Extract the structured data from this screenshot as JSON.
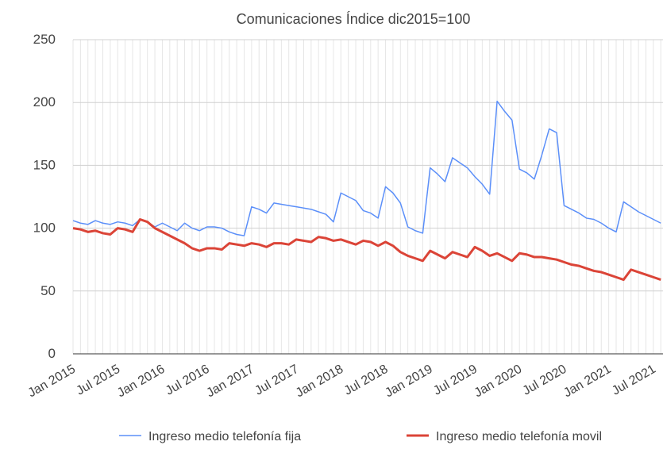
{
  "chart_data": {
    "type": "line",
    "title": "Comunicaciones Índice dic2015=100",
    "categories": [
      "Jan 2015",
      null,
      null,
      null,
      null,
      null,
      "Jul 2015",
      null,
      null,
      null,
      null,
      null,
      "Jan 2016",
      null,
      null,
      null,
      null,
      null,
      "Jul 2016",
      null,
      null,
      null,
      null,
      null,
      "Jan 2017",
      null,
      null,
      null,
      null,
      null,
      "Jul 2017",
      null,
      null,
      null,
      null,
      null,
      "Jan 2018",
      null,
      null,
      null,
      null,
      null,
      "Jul 2018",
      null,
      null,
      null,
      null,
      null,
      "Jan 2019",
      null,
      null,
      null,
      null,
      null,
      "Jul 2019",
      null,
      null,
      null,
      null,
      null,
      "Jan 2020",
      null,
      null,
      null,
      null,
      null,
      "Jul 2020",
      null,
      null,
      null,
      null,
      null,
      "Jan 2021",
      null,
      null,
      null,
      null,
      null,
      "Jul 2021",
      null
    ],
    "series": [
      {
        "name": "Ingreso medio telefonía fija",
        "color": "#5b8ff9",
        "width": 1.5,
        "values": [
          106,
          104,
          103,
          106,
          104,
          103,
          105,
          104,
          102,
          107,
          105,
          101,
          104,
          101,
          98,
          104,
          100,
          98,
          101,
          101,
          100,
          97,
          95,
          94,
          117,
          115,
          112,
          120,
          119,
          118,
          117,
          116,
          115,
          113,
          111,
          105,
          128,
          125,
          122,
          114,
          112,
          108,
          133,
          128,
          120,
          101,
          98,
          96,
          148,
          143,
          137,
          156,
          152,
          148,
          141,
          135,
          127,
          201,
          193,
          186,
          147,
          144,
          139,
          158,
          179,
          176,
          118,
          115,
          112,
          108,
          107,
          104,
          100,
          97,
          121,
          117,
          113,
          110,
          107,
          104
        ]
      },
      {
        "name": "Ingreso medio telefonía movil",
        "color": "#db4437",
        "width": 3,
        "values": [
          100,
          99,
          97,
          98,
          96,
          95,
          100,
          99,
          97,
          107,
          105,
          100,
          97,
          94,
          91,
          88,
          84,
          82,
          84,
          84,
          83,
          88,
          87,
          86,
          88,
          87,
          85,
          88,
          88,
          87,
          91,
          90,
          89,
          93,
          92,
          90,
          91,
          89,
          87,
          90,
          89,
          86,
          89,
          86,
          81,
          78,
          76,
          74,
          82,
          79,
          76,
          81,
          79,
          77,
          85,
          82,
          78,
          80,
          77,
          74,
          80,
          79,
          77,
          77,
          76,
          75,
          73,
          71,
          70,
          68,
          66,
          65,
          63,
          61,
          59,
          67,
          65,
          63,
          61,
          59
        ]
      }
    ],
    "ylim": [
      0,
      250
    ],
    "yticks": [
      0,
      50,
      100,
      150,
      200,
      250
    ],
    "grid": true
  }
}
